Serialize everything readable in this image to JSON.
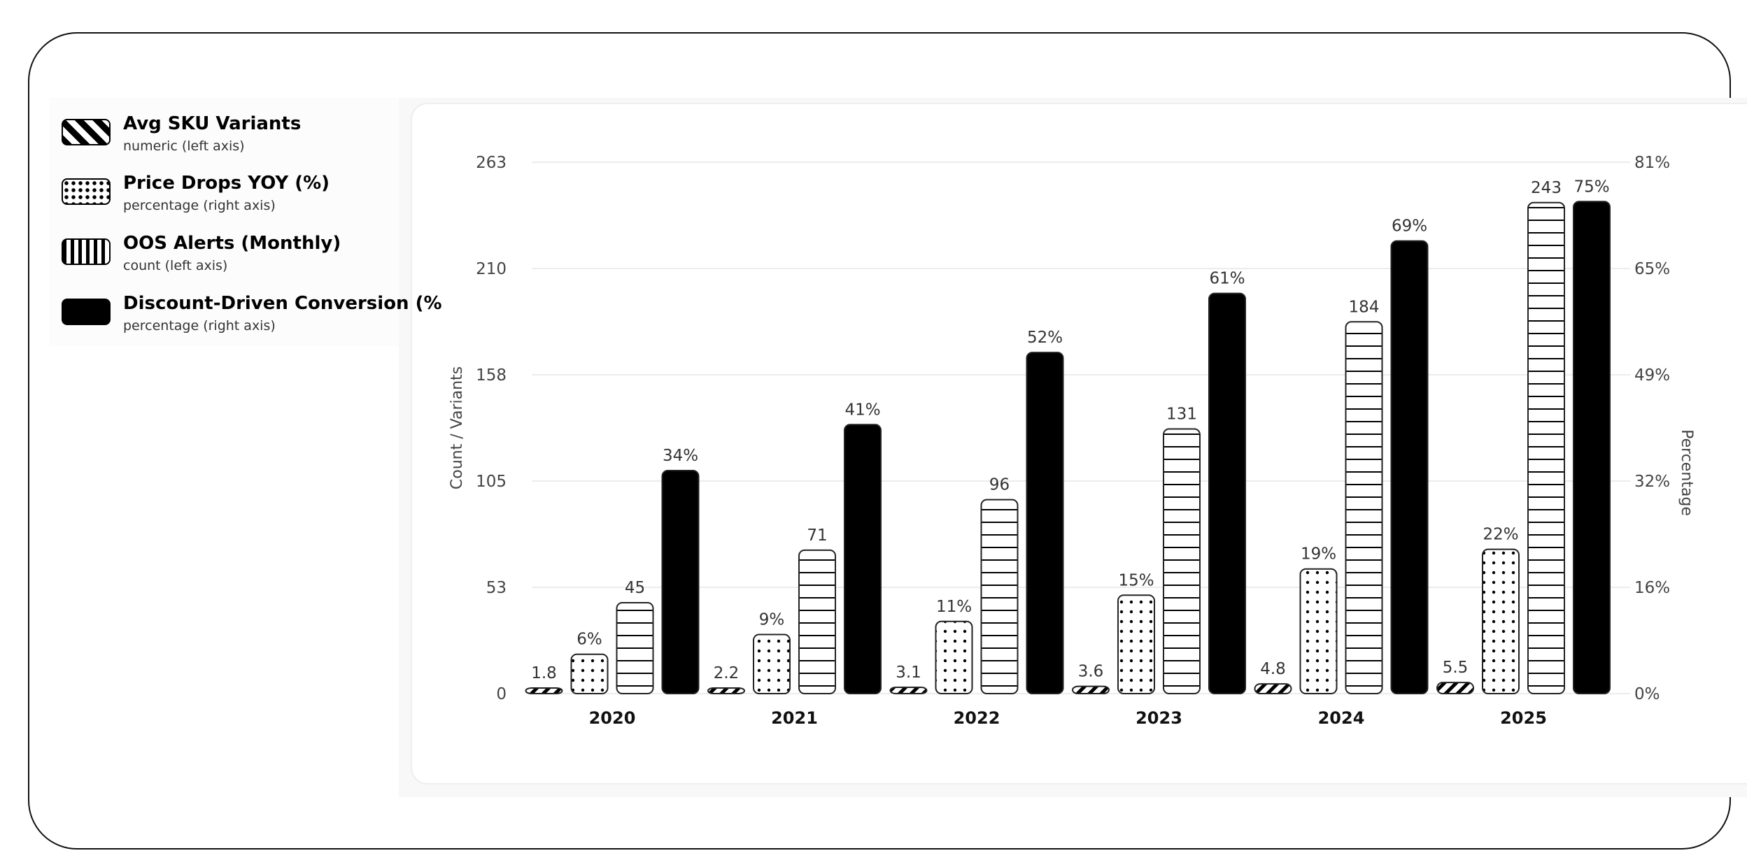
{
  "legend": [
    {
      "title": "Avg SKU Variants",
      "subtitle": "numeric (left axis)",
      "pattern": "diagonal-stripes"
    },
    {
      "title": "Price Drops YOY (%)",
      "subtitle": "percentage (right axis)",
      "pattern": "dots"
    },
    {
      "title": "OOS Alerts (Monthly)",
      "subtitle": "count (left axis)",
      "pattern": "stripes"
    },
    {
      "title": "Discount-Driven Conversion (%",
      "subtitle": "percentage (right axis)",
      "pattern": "solid"
    }
  ],
  "chart_data": {
    "type": "bar",
    "categories": [
      "2020",
      "2021",
      "2022",
      "2023",
      "2024",
      "2025"
    ],
    "ylabel": "Count / Variants",
    "y2label": "Percentage",
    "ylim": [
      0,
      263
    ],
    "y2lim": [
      0,
      81
    ],
    "yticks": [
      "0",
      "53",
      "105",
      "158",
      "210",
      "263"
    ],
    "y2ticks": [
      "0%",
      "16%",
      "32%",
      "49%",
      "65%",
      "81%"
    ],
    "grid": true,
    "legend_position": "left",
    "series": [
      {
        "name": "Avg SKU Variants",
        "axis": "left",
        "values": [
          1.8,
          2.2,
          3.1,
          3.6,
          4.8,
          5.5
        ],
        "labels": [
          "1.8",
          "2.2",
          "3.1",
          "3.6",
          "4.8",
          "5.5"
        ]
      },
      {
        "name": "Price Drops YOY (%)",
        "axis": "right",
        "values": [
          6,
          9,
          11,
          15,
          19,
          22
        ],
        "labels": [
          "6%",
          "9%",
          "11%",
          "15%",
          "19%",
          "22%"
        ]
      },
      {
        "name": "OOS Alerts (Monthly)",
        "axis": "left",
        "values": [
          45,
          71,
          96,
          131,
          184,
          243
        ],
        "labels": [
          "45",
          "71",
          "96",
          "131",
          "184",
          "243"
        ]
      },
      {
        "name": "Discount-Driven Conversion (%",
        "axis": "right",
        "values": [
          34,
          41,
          52,
          61,
          69,
          75
        ],
        "labels": [
          "34%",
          "41%",
          "52%",
          "61%",
          "69%",
          "75%"
        ]
      }
    ]
  }
}
